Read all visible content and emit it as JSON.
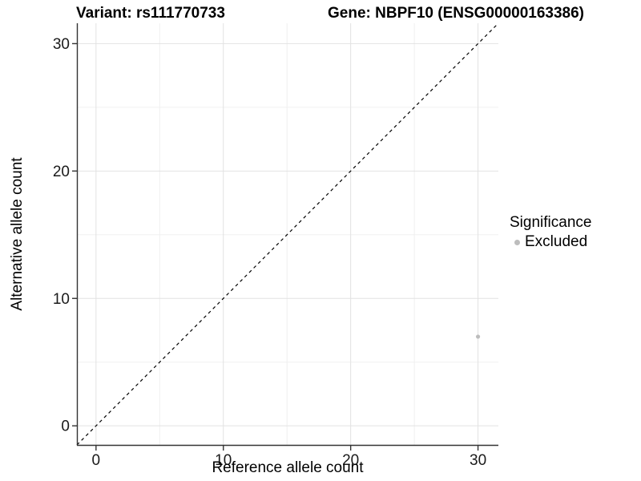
{
  "titles": {
    "variant": "Variant: rs111770733",
    "gene": "Gene: NBPF10 (ENSG00000163386)"
  },
  "chart_data": {
    "type": "scatter",
    "xlabel": "Reference allele count",
    "ylabel": "Alternative allele count",
    "xlim": [
      -1.5,
      31.6
    ],
    "ylim": [
      -1.5,
      31.6
    ],
    "x_ticks": [
      0,
      10,
      20,
      30
    ],
    "y_ticks": [
      0,
      10,
      20,
      30
    ],
    "minor_breaks": [
      5,
      15,
      25
    ],
    "grid": {
      "major": true,
      "minor": true,
      "major_color": "#e2e2e2",
      "minor_color": "#f0f0f0"
    },
    "axis_color": "#333333",
    "tick_label_color": "#1a1a1a",
    "identity_line": {
      "style": "dashed",
      "color": "#000000",
      "from": -1.5,
      "to": 31.6
    },
    "series": [
      {
        "name": "Excluded",
        "color": "#bdbdbd",
        "points": [
          {
            "x": 30,
            "y": 7
          }
        ]
      }
    ],
    "legend": {
      "title": "Significance",
      "position": "right",
      "items": [
        {
          "label": "Excluded",
          "color": "#bdbdbd"
        }
      ]
    }
  }
}
